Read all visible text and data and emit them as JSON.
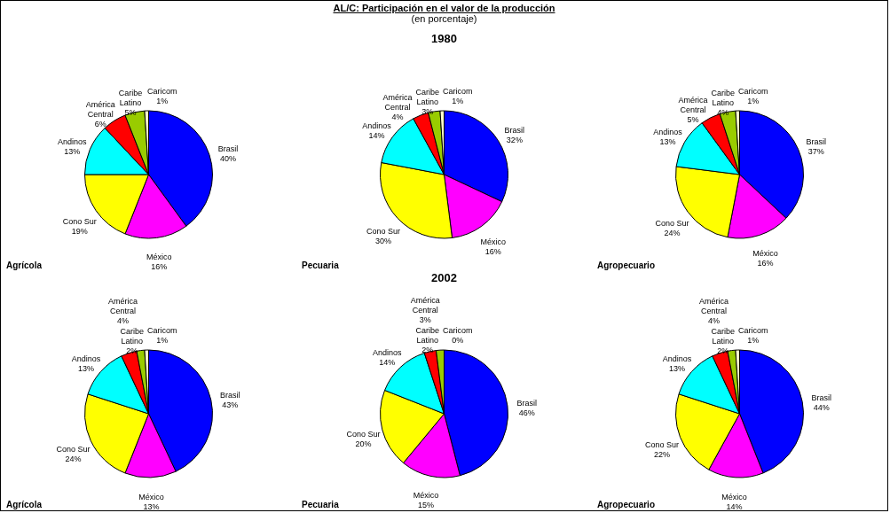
{
  "chart_data": [
    {
      "type": "pie",
      "title": "Agrícola",
      "annotations": [
        "AL/C: Participación en el valor de la producción",
        "(en porcentaje)"
      ],
      "categories": [
        "Brasil",
        "México",
        "Cono Sur",
        "Andinos",
        "América Central",
        "Caribe Latino",
        "Caricom"
      ],
      "values": [
        40,
        16,
        19,
        13,
        6,
        5,
        1
      ],
      "value_labels": [
        "40%",
        "16%",
        "19%",
        "13%",
        "6%",
        "5%",
        "1%"
      ],
      "colors": [
        "#0000ff",
        "#ff00ff",
        "#ffff00",
        "#00ffff",
        "#ff0000",
        "#99cc00",
        "#ffffcc"
      ]
    },
    {
      "type": "pie",
      "title": "Pecuaria",
      "subtitle": "1980",
      "categories": [
        "Brasil",
        "México",
        "Cono Sur",
        "Andinos",
        "América Central",
        "Caribe Latino",
        "Caricom"
      ],
      "values": [
        32,
        16,
        30,
        14,
        4,
        3,
        1
      ],
      "value_labels": [
        "32%",
        "16%",
        "30%",
        "14%",
        "4%",
        "3%",
        "1%"
      ],
      "colors": [
        "#0000ff",
        "#ff00ff",
        "#ffff00",
        "#00ffff",
        "#ff0000",
        "#99cc00",
        "#ffffcc"
      ]
    },
    {
      "type": "pie",
      "title": "Agropecuario",
      "categories": [
        "Brasil",
        "México",
        "Cono Sur",
        "Andinos",
        "América Central",
        "Caribe Latino",
        "Caricom"
      ],
      "values": [
        37,
        16,
        24,
        13,
        5,
        4,
        1
      ],
      "value_labels": [
        "37%",
        "16%",
        "24%",
        "13%",
        "5%",
        "4%",
        "1%"
      ],
      "colors": [
        "#0000ff",
        "#ff00ff",
        "#ffff00",
        "#00ffff",
        "#ff0000",
        "#99cc00",
        "#ffffcc"
      ]
    },
    {
      "type": "pie",
      "title": "Agrícola",
      "categories": [
        "Brasil",
        "México",
        "Cono Sur",
        "Andinos",
        "América Central",
        "Caribe Latino",
        "Caricom"
      ],
      "values": [
        43,
        13,
        24,
        13,
        4,
        2,
        1
      ],
      "value_labels": [
        "43%",
        "13%",
        "24%",
        "13%",
        "4%",
        "2%",
        "1%"
      ],
      "colors": [
        "#0000ff",
        "#ff00ff",
        "#ffff00",
        "#00ffff",
        "#ff0000",
        "#99cc00",
        "#ffffcc"
      ]
    },
    {
      "type": "pie",
      "title": "Pecuaria",
      "subtitle": "2002",
      "categories": [
        "Brasil",
        "México",
        "Cono Sur",
        "Andinos",
        "América Central",
        "Caribe Latino",
        "Caricom"
      ],
      "values": [
        46,
        15,
        20,
        14,
        3,
        2,
        0
      ],
      "value_labels": [
        "46%",
        "15%",
        "20%",
        "14%",
        "3%",
        "2%",
        "0%"
      ],
      "colors": [
        "#0000ff",
        "#ff00ff",
        "#ffff00",
        "#00ffff",
        "#ff0000",
        "#99cc00",
        "#ffffcc"
      ]
    },
    {
      "type": "pie",
      "title": "Agropecuario",
      "categories": [
        "Brasil",
        "México",
        "Cono Sur",
        "Andinos",
        "América Central",
        "Caribe Latino",
        "Caricom"
      ],
      "values": [
        44,
        14,
        22,
        13,
        4,
        2,
        1
      ],
      "value_labels": [
        "44%",
        "14%",
        "22%",
        "13%",
        "4%",
        "2%",
        "1%"
      ],
      "colors": [
        "#0000ff",
        "#ff00ff",
        "#ffff00",
        "#00ffff",
        "#ff0000",
        "#99cc00",
        "#ffffcc"
      ]
    }
  ]
}
